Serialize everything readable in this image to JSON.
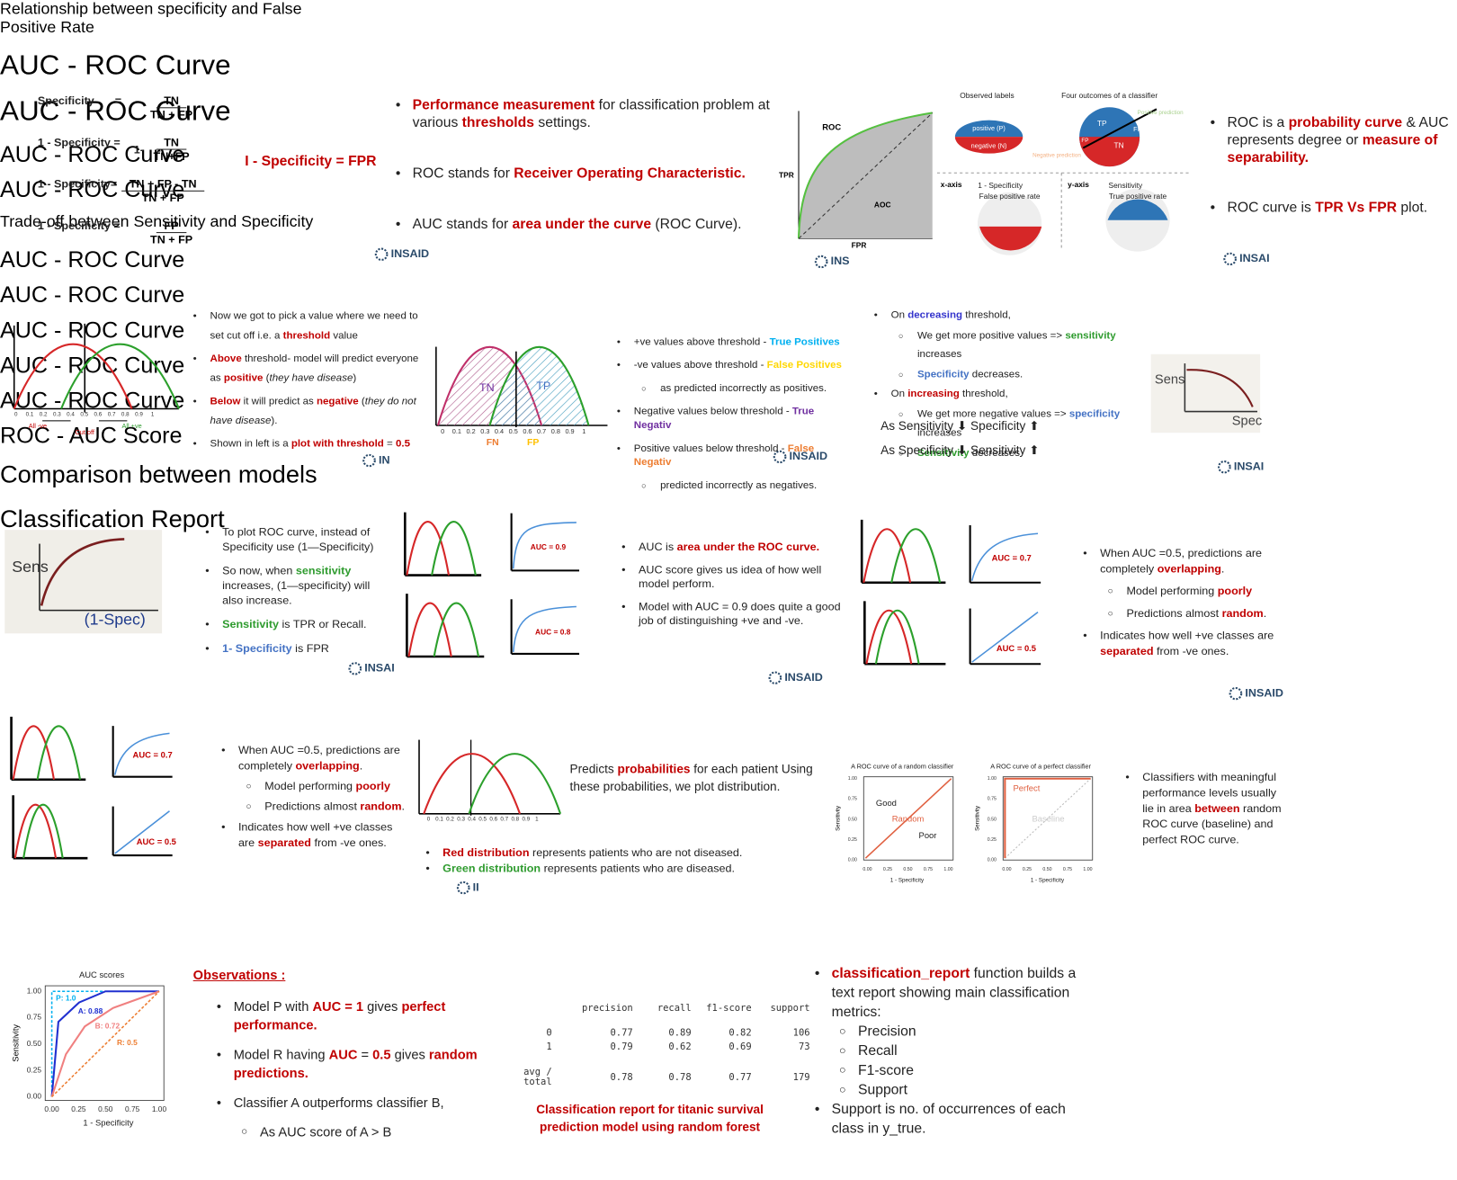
{
  "panels": [
    {
      "title": "Relationship between specificity and False Positive Rate",
      "formulas": [
        {
          "lhs": "Specificity",
          "eq": "=",
          "num": "TN",
          "den": "TN + FP"
        },
        {
          "lhs": "1 - Specificity =",
          "prefix": "1-",
          "num": "TN",
          "den": "TN+FP"
        },
        {
          "lhs": "1 - Specificity=",
          "num": "TN + FP - TN",
          "den": "TN + FP"
        },
        {
          "lhs": "1 - Specificity =",
          "num": "FP",
          "den": "TN + FP"
        }
      ],
      "result": {
        "text": "I - Specificity = FPR",
        "color": "#c00000"
      }
    },
    {
      "title": "AUC - ROC Curve",
      "bullets": [
        {
          "runs": [
            {
              "text": "Performance measurement",
              "color": "#c00000"
            },
            " for classification problem at various ",
            {
              "text": "thresholds",
              "color": "#c00000"
            },
            " settings."
          ]
        },
        {
          "runs": [
            "ROC stands for ",
            {
              "text": "Receiver Operating Characteristic.",
              "color": "#c00000"
            }
          ]
        },
        {
          "runs": [
            "AUC stands for ",
            {
              "text": "area under the curve",
              "color": "#c00000"
            },
            " (ROC Curve)."
          ]
        }
      ]
    },
    {
      "title": "AUC - ROC Curve",
      "figure": {
        "labels": [
          "ROC",
          "TPR",
          "AOC",
          "FPR",
          "Observed labels",
          "Four outcomes of a classifier",
          "positive (P)",
          "negative (N)",
          "TP",
          "FN",
          "TN",
          "FP",
          "Negative prediction",
          "Positive prediction",
          "x-axis",
          "1 - Specificity",
          "False positive rate",
          "y-axis",
          "Sensitivity",
          "True positive rate"
        ]
      },
      "bullets": [
        {
          "runs": [
            "ROC is a ",
            {
              "text": "probability curve",
              "color": "#c00000"
            },
            " & AUC represents degree or ",
            {
              "text": "measure of separability.",
              "color": "#c00000"
            }
          ]
        },
        {
          "runs": [
            "ROC curve is ",
            {
              "text": "TPR Vs FPR",
              "color": "#c00000"
            },
            " plot."
          ]
        }
      ]
    },
    {
      "title": "AUC - ROC Curve",
      "figure": {
        "labels": [
          "All -ve",
          "Cut off",
          "All +ve"
        ],
        "ticks": [
          "0",
          "0.1",
          "0.2",
          "0.3",
          "0.4",
          "0.5",
          "0.6",
          "0.7",
          "0.8",
          "0.9",
          "1"
        ]
      },
      "bullets": [
        {
          "runs": [
            "Now we got to pick a value where we need to set cut off i.e. a ",
            {
              "text": "threshold",
              "color": "#c00000"
            },
            " value"
          ]
        },
        {
          "runs": [
            {
              "text": "Above",
              "color": "#c00000"
            },
            " threshold- model will predict everyone as ",
            {
              "text": "positive",
              "color": "#c00000"
            },
            " (",
            {
              "text": "they have disease",
              "style": "italic"
            },
            ")"
          ]
        },
        {
          "runs": [
            {
              "text": "Below",
              "color": "#c00000"
            },
            " it will predict as ",
            {
              "text": "negative",
              "color": "#c00000"
            },
            " (",
            {
              "text": "they do not have disease",
              "style": "italic"
            },
            ")."
          ]
        },
        {
          "runs": [
            "Shown in left is a ",
            {
              "text": "plot with threshold",
              "color": "#c00000"
            },
            "  = ",
            {
              "text": "0.5",
              "color": "#c00000"
            }
          ]
        }
      ]
    },
    {
      "title": "AUC - ROC Curve",
      "figure": {
        "labels": [
          "TN",
          "TP",
          "FN",
          "FP"
        ],
        "ticks": [
          "0",
          "0.1",
          "0.2",
          "0.3",
          "0.4",
          "0.5",
          "0.6",
          "0.7",
          "0.8",
          "0.9",
          "1"
        ]
      },
      "bullets": [
        {
          "runs": [
            "+ve values above threshold - ",
            {
              "text": "True Positives",
              "color": "#00b0f0"
            }
          ]
        },
        {
          "runs": [
            "-ve values above threshold - ",
            {
              "text": "False Positives",
              "color": "#ffd700"
            }
          ],
          "sub": [
            [
              "as predicted incorrectly as positives."
            ]
          ]
        },
        {
          "runs": [
            "Negative values below threshold - ",
            {
              "text": "True Negativ",
              "color": "#7030a0"
            }
          ]
        },
        {
          "runs": [
            "Positive values below threshold - ",
            {
              "text": "False Negativ",
              "color": "#ed7d31"
            }
          ],
          "sub": [
            [
              "predicted incorrectly as negatives."
            ]
          ]
        }
      ]
    },
    {
      "title": "Trade-off between Sensitivity and Specificity",
      "figure": {
        "labels": [
          "Sens",
          "Spec"
        ]
      },
      "bullets": [
        {
          "runs": [
            "On ",
            {
              "text": "decreasing",
              "color": "#3333cc"
            },
            " threshold,"
          ],
          "sub": [
            [
              "We get more positive values => ",
              {
                "text": "sensitivity",
                "color": "#2e9b2e"
              },
              " increases"
            ],
            [
              {
                "text": "Specificity",
                "color": "#4472c4"
              },
              " decreases."
            ]
          ]
        },
        {
          "runs": [
            "On ",
            {
              "text": "increasing",
              "color": "#c00000"
            },
            " threshold,"
          ],
          "sub": [
            [
              "We get more negative values => ",
              {
                "text": "specificity",
                "color": "#4472c4"
              },
              " increases"
            ],
            [
              {
                "text": "Sensitivity",
                "color": "#2e9b2e"
              },
              " decreases"
            ]
          ]
        }
      ],
      "lines": [
        "As Sensitivity ⬇ Specificity ⬆",
        "As Specificity ⬇ Sensitivity ⬆"
      ]
    },
    {
      "title": "AUC - ROC Curve",
      "figure": {
        "labels": [
          "Sens",
          "(1-Spec)"
        ]
      },
      "bullets": [
        {
          "runs": [
            "To plot ROC curve, instead of Specificity use (1—Specificity)"
          ]
        },
        {
          "runs": [
            "So now, when ",
            {
              "text": "sensitivity",
              "color": "#2e9b2e"
            },
            " increases, (1—specificity) will also increase."
          ]
        },
        {
          "runs": [
            {
              "text": "Sensitivity",
              "color": "#2e9b2e"
            },
            " is TPR or Recall."
          ]
        },
        {
          "runs": [
            {
              "text": "1- Specificity",
              "color": "#4472c4"
            },
            " is FPR"
          ]
        }
      ]
    },
    {
      "title": "AUC - ROC Curve",
      "figure": {
        "labels": [
          "AUC = 0.9",
          "AUC = 0.8"
        ]
      },
      "bullets": [
        {
          "runs": [
            "AUC is ",
            {
              "text": "area under the ROC curve.",
              "color": "#c00000"
            }
          ]
        },
        {
          "runs": [
            "AUC score gives us idea of how well model perform."
          ]
        },
        {
          "runs": [
            "Model with AUC = 0.9 does quite a good job of distinguishing +ve and -ve."
          ]
        }
      ]
    },
    {
      "title": "AUC - ROC Curve",
      "figure": {
        "labels": [
          "AUC = 0.7",
          "AUC = 0.5"
        ]
      },
      "bullets": [
        {
          "runs": [
            "When AUC =0.5, predictions are completely ",
            {
              "text": "overlapping",
              "color": "#c00000"
            },
            "."
          ],
          "sub": [
            [
              "Model performing ",
              {
                "text": "poorly",
                "color": "#c00000"
              }
            ],
            [
              "Predictions almost ",
              {
                "text": "random",
                "color": "#c00000"
              },
              "."
            ]
          ]
        },
        {
          "runs": [
            "Indicates how well +ve classes are ",
            {
              "text": "separated",
              "color": "#c00000"
            },
            " from -ve ones."
          ]
        }
      ]
    },
    {
      "title": "AUC - ROC Curve",
      "figure": {
        "labels": [
          "AUC = 0.7",
          "AUC = 0.5"
        ]
      },
      "bullets": [
        {
          "runs": [
            "When AUC =0.5, predictions are completely ",
            {
              "text": "overlapping",
              "color": "#c00000"
            },
            "."
          ],
          "sub": [
            [
              "Model performing ",
              {
                "text": "poorly",
                "color": "#c00000"
              }
            ],
            [
              "Predictions almost ",
              {
                "text": "random",
                "color": "#c00000"
              },
              "."
            ]
          ]
        },
        {
          "runs": [
            "Indicates how well +ve classes are ",
            {
              "text": "separated",
              "color": "#c00000"
            },
            " from -ve ones."
          ]
        }
      ]
    },
    {
      "title": "AUC - ROC Curve",
      "figure": {
        "ticks": [
          "0",
          "0.1",
          "0.2",
          "0.3",
          "0.4",
          "0.5",
          "0.6",
          "0.7",
          "0.8",
          "0.9",
          "1"
        ]
      },
      "intro": [
        "Predicts ",
        {
          "text": "probabilities",
          "color": "#c00000"
        },
        " for each patient Using these probabilities, we plot distribution."
      ],
      "bullets": [
        {
          "runs": [
            {
              "text": "Red distribution",
              "color": "#c00000"
            },
            " represents patients who are not diseased."
          ]
        },
        {
          "runs": [
            {
              "text": "Green distribution",
              "color": "#2e9b2e"
            },
            " represents patients who are diseased."
          ]
        }
      ]
    },
    {
      "title": "ROC - AUC Score",
      "figure": {
        "labels": [
          "A ROC curve of a random classifier",
          "A ROC curve of a perfect classifier",
          "Sensitivity",
          "1 - Specificity",
          "Good",
          "Random",
          "Poor",
          "Perfect",
          "Baseline"
        ],
        "ticks": [
          "0.00",
          "0.25",
          "0.50",
          "0.75",
          "1.00"
        ]
      },
      "bullets": [
        {
          "runs": [
            "Classifiers with meaningful performance levels usually lie in area ",
            {
              "text": "between",
              "color": "#c00000"
            },
            " random ROC curve (baseline) and perfect ROC curve."
          ]
        }
      ]
    },
    {
      "title": "Comparison between models",
      "figure": {
        "labels": [
          "AUC scores",
          "Sensitivity",
          "1 - Specificity",
          "P: 1.0",
          "A: 0.88",
          "B: 0.72",
          "R: 0.5"
        ],
        "ticks": [
          "0.00",
          "0.25",
          "0.50",
          "0.75",
          "1.00"
        ]
      },
      "observations": {
        "text": "Observations :",
        "color": "#c00000"
      },
      "bullets": [
        {
          "runs": [
            "Model P with ",
            {
              "text": "AUC = 1",
              "color": "#c00000"
            },
            " gives ",
            {
              "text": "perfect performance.",
              "color": "#c00000"
            }
          ]
        },
        {
          "runs": [
            "Model R having ",
            {
              "text": "AUC",
              "color": "#c00000"
            },
            " = ",
            {
              "text": "0.5",
              "color": "#c00000"
            },
            " gives ",
            {
              "text": "random predictions.",
              "color": "#c00000"
            }
          ]
        },
        {
          "runs": [
            "Classifier A outperforms classifier B,"
          ],
          "sub": [
            [
              "As AUC score of A > B"
            ]
          ]
        }
      ]
    },
    {
      "title": "Classification Report",
      "table": {
        "header": [
          "precision",
          "recall",
          "f1-score",
          "support"
        ],
        "rows": [
          [
            "0",
            "0.77",
            "0.89",
            "0.82",
            "106"
          ],
          [
            "1",
            "0.79",
            "0.62",
            "0.69",
            "73"
          ],
          [
            "avg / total",
            "0.78",
            "0.78",
            "0.77",
            "179"
          ]
        ]
      },
      "caption": {
        "text": "Classification report for titanic survival prediction model using random forest",
        "color": "#c00000"
      },
      "bullets": [
        {
          "runs": [
            {
              "text": "classification_report",
              "color": "#c00000"
            },
            " function builds a text report showing main classification metrics:"
          ],
          "sub": [
            [
              "Precision"
            ],
            [
              "Recall"
            ],
            [
              "F1-score"
            ],
            [
              "Support"
            ]
          ]
        },
        {
          "runs": [
            "Support is no. of occurrences of each class in y_true."
          ]
        }
      ]
    }
  ],
  "logos": [
    "INSAID",
    "INS",
    "INSAI",
    "IN",
    "INSAID",
    "INSAI",
    "INSAI",
    "INSAID",
    "INSAID",
    "II"
  ]
}
